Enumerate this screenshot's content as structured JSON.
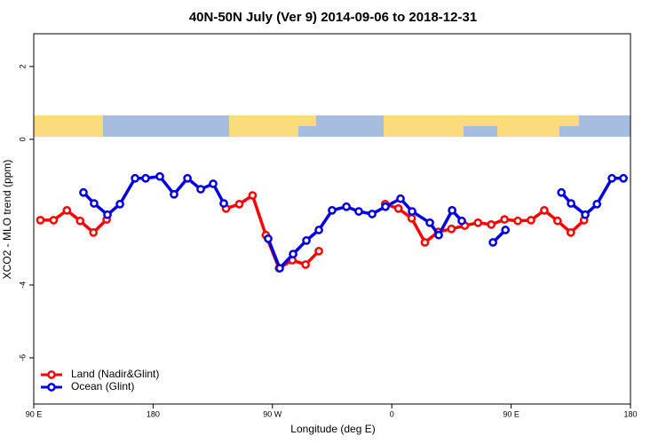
{
  "chart_data": {
    "type": "line",
    "title": "40N-50N July (Ver 9)   2014-09-06 to 2018-12-31",
    "x_label": "Longitude (deg E)",
    "y_label": "XCO2 - MLO trend (ppm)",
    "xlim": [
      90,
      540
    ],
    "ylim": [
      2.9,
      -7.27
    ],
    "xticks": [
      {
        "value": 90,
        "label": "90 E"
      },
      180,
      {
        "value": 270,
        "label": "90 W"
      },
      {
        "value": 360,
        "label": "0"
      },
      {
        "value": 450,
        "label": "90 E"
      },
      180
    ],
    "yticks": [
      -6,
      -4,
      0,
      2
    ],
    "legend": "bottom-left",
    "series": [
      {
        "name": "Land (Nadir&Glint)",
        "color": "#ff0000",
        "x": [
          95,
          105,
          115,
          125,
          135,
          145,
          190,
          235,
          245,
          255,
          265,
          275,
          285,
          295,
          305,
          330,
          355,
          365,
          375,
          385,
          395,
          405,
          415,
          425,
          435,
          445,
          455,
          465,
          475,
          485,
          495,
          505
        ],
        "values": [
          -2.22,
          -2.22,
          -1.95,
          -2.24,
          -2.56,
          -2.2,
          null,
          -1.9,
          -1.78,
          -1.54,
          -2.63,
          -3.54,
          -3.32,
          -3.44,
          -3.07,
          null,
          -1.78,
          -1.9,
          -2.17,
          -2.83,
          -2.54,
          -2.46,
          -2.37,
          -2.29,
          -2.34,
          -2.2,
          -2.24,
          -2.22,
          -1.95,
          -2.24,
          -2.56,
          -2.22
        ]
      },
      {
        "name": "Ocean (Glint)",
        "color": "#0000e0",
        "x": [
          127.5,
          135.5,
          145.6,
          155,
          166.4,
          174.4,
          185.1,
          195.8,
          205.9,
          215.9,
          225.3,
          233.3,
          250,
          266.8,
          275.5,
          285.6,
          295.6,
          305,
          315,
          325.8,
          335.1,
          345.2,
          355.2,
          366.6,
          375.3,
          388.7,
          395.4,
          405.5,
          412.8,
          425,
          436.3,
          445.7,
          465,
          487.9,
          495.2,
          505.9,
          514.7,
          526,
          534.7
        ],
        "values": [
          -1.46,
          -1.76,
          -2.07,
          -1.78,
          -1.07,
          -1.07,
          -1.02,
          -1.51,
          -1.07,
          -1.37,
          -1.22,
          -1.76,
          null,
          -2.73,
          -3.54,
          -3.15,
          -2.78,
          -2.49,
          -1.95,
          -1.85,
          -1.98,
          -2.05,
          -1.85,
          -1.63,
          -1.98,
          -2.29,
          -2.63,
          -1.95,
          -2.24,
          null,
          -2.83,
          -2.49,
          null,
          -1.46,
          -1.76,
          -2.07,
          -1.78,
          -1.07,
          -1.07
        ]
      }
    ]
  }
}
